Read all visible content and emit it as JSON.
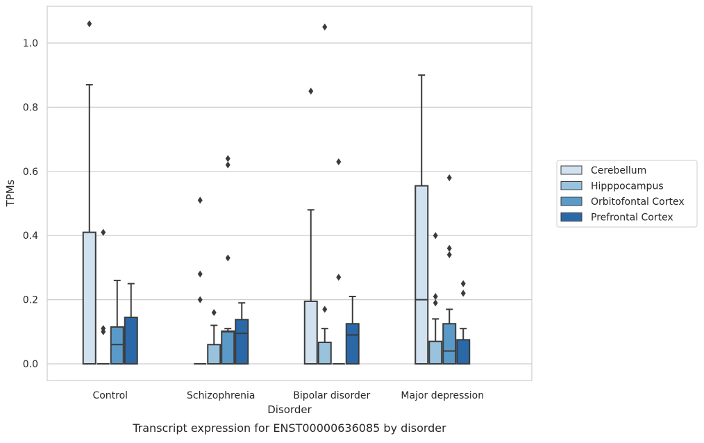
{
  "chart_data": {
    "type": "box",
    "caption": "Transcript expression for ENST00000636085 by disorder",
    "xlabel": "Disorder",
    "ylabel": "TPMs",
    "ylim": [
      -0.05,
      1.12
    ],
    "yticks": [
      0.0,
      0.2,
      0.4,
      0.6,
      0.8,
      1.0
    ],
    "ytick_labels": [
      "0.0",
      "0.2",
      "0.4",
      "0.6",
      "0.8",
      "1.0"
    ],
    "grid": "horizontal",
    "legend_position": "right",
    "categories": [
      "Control",
      "Schizophrenia",
      "Bipolar disorder",
      "Major depression"
    ],
    "series": [
      {
        "name": "Cerebellum",
        "color": "#d1e1f0",
        "boxes": [
          {
            "q1": 0.0,
            "median": 0.0,
            "q3": 0.41,
            "whisker_low": 0.0,
            "whisker_high": 0.87,
            "outliers": [
              1.06
            ]
          },
          {
            "q1": 0.0,
            "median": 0.0,
            "q3": 0.0,
            "whisker_low": 0.0,
            "whisker_high": 0.0,
            "outliers": [
              0.2,
              0.28,
              0.51
            ]
          },
          {
            "q1": 0.0,
            "median": 0.0,
            "q3": 0.195,
            "whisker_low": 0.0,
            "whisker_high": 0.48,
            "outliers": [
              0.85
            ]
          },
          {
            "q1": 0.0,
            "median": 0.2,
            "q3": 0.555,
            "whisker_low": 0.0,
            "whisker_high": 0.9,
            "outliers": []
          }
        ]
      },
      {
        "name": "Hipppocampus",
        "color": "#99c2dd",
        "boxes": [
          {
            "q1": 0.0,
            "median": 0.0,
            "q3": 0.0,
            "whisker_low": 0.0,
            "whisker_high": 0.0,
            "outliers": [
              0.1,
              0.11,
              0.41
            ]
          },
          {
            "q1": 0.0,
            "median": 0.0,
            "q3": 0.06,
            "whisker_low": 0.0,
            "whisker_high": 0.12,
            "outliers": [
              0.16
            ]
          },
          {
            "q1": 0.0,
            "median": 0.0,
            "q3": 0.067,
            "whisker_low": 0.0,
            "whisker_high": 0.11,
            "outliers": [
              0.17,
              1.05
            ]
          },
          {
            "q1": 0.0,
            "median": 0.0,
            "q3": 0.07,
            "whisker_low": 0.0,
            "whisker_high": 0.14,
            "outliers": [
              0.19,
              0.21,
              0.4
            ]
          }
        ]
      },
      {
        "name": "Orbitofontal Cortex",
        "color": "#5a9ac8",
        "boxes": [
          {
            "q1": 0.0,
            "median": 0.06,
            "q3": 0.115,
            "whisker_low": 0.0,
            "whisker_high": 0.26,
            "outliers": []
          },
          {
            "q1": 0.0,
            "median": 0.1,
            "q3": 0.102,
            "whisker_low": 0.0,
            "whisker_high": 0.11,
            "outliers": [
              0.33,
              0.62,
              0.64
            ]
          },
          {
            "q1": 0.0,
            "median": 0.0,
            "q3": 0.0,
            "whisker_low": 0.0,
            "whisker_high": 0.0,
            "outliers": [
              0.27,
              0.63
            ]
          },
          {
            "q1": 0.0,
            "median": 0.04,
            "q3": 0.125,
            "whisker_low": 0.0,
            "whisker_high": 0.17,
            "outliers": [
              0.34,
              0.36,
              0.58
            ]
          }
        ]
      },
      {
        "name": "Prefrontal Cortex",
        "color": "#2a68a8",
        "boxes": [
          {
            "q1": 0.0,
            "median": 0.0,
            "q3": 0.145,
            "whisker_low": 0.0,
            "whisker_high": 0.25,
            "outliers": []
          },
          {
            "q1": 0.0,
            "median": 0.095,
            "q3": 0.138,
            "whisker_low": 0.0,
            "whisker_high": 0.19,
            "outliers": []
          },
          {
            "q1": 0.0,
            "median": 0.09,
            "q3": 0.125,
            "whisker_low": 0.0,
            "whisker_high": 0.21,
            "outliers": []
          },
          {
            "q1": 0.0,
            "median": 0.0,
            "q3": 0.075,
            "whisker_low": 0.0,
            "whisker_high": 0.11,
            "outliers": [
              0.22,
              0.25
            ]
          }
        ]
      }
    ]
  }
}
